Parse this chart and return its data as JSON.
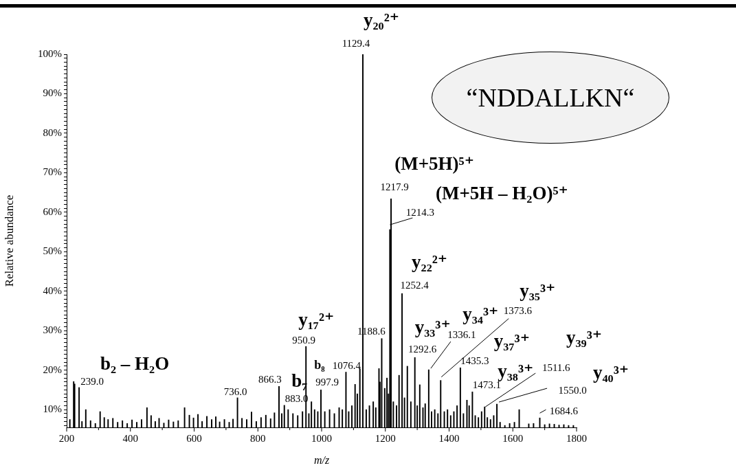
{
  "chart_data": {
    "type": "bar",
    "xlabel": "m/z",
    "ylabel": "Relative abundance",
    "xlim": [
      200,
      1800
    ],
    "xticks": [
      200,
      {
        "value": 300,
        "label": null
      },
      400,
      {
        "value": 500,
        "label": null
      },
      600,
      {
        "value": 700,
        "label": null
      },
      800,
      {
        "value": 900,
        "label": null
      },
      1000,
      {
        "value": 1100,
        "label": null
      },
      1200,
      {
        "value": 1300,
        "label": null
      },
      1400,
      {
        "value": 1500,
        "label": null
      },
      1600,
      {
        "value": 1700,
        "label": null
      },
      1800
    ],
    "ylim": [
      5.5,
      100
    ],
    "yticks": [
      {
        "value": 10,
        "label": "10%"
      },
      {
        "value": 20,
        "label": "20%"
      },
      {
        "value": 30,
        "label": "30%"
      },
      {
        "value": 40,
        "label": "40%"
      },
      {
        "value": 50,
        "label": "50%"
      },
      {
        "value": 60,
        "label": "60%"
      },
      {
        "value": 70,
        "label": "70%"
      },
      {
        "value": 80,
        "label": "80%"
      },
      {
        "value": 90,
        "label": "90%"
      },
      {
        "value": 100,
        "label": "100%"
      },
      {
        "value": 6,
        "label": null
      },
      {
        "value": 7,
        "label": null
      },
      {
        "value": 8,
        "label": null
      },
      {
        "value": 9,
        "label": null
      },
      {
        "value": 11,
        "label": null
      },
      {
        "value": 12,
        "label": null
      },
      {
        "value": 13,
        "label": null
      },
      {
        "value": 14,
        "label": null
      },
      {
        "value": 15,
        "label": null
      },
      {
        "value": 16,
        "label": null
      },
      {
        "value": 17,
        "label": null
      },
      {
        "value": 18,
        "label": null
      },
      {
        "value": 19,
        "label": null
      },
      {
        "value": 21,
        "label": null
      },
      {
        "value": 22,
        "label": null
      },
      {
        "value": 23,
        "label": null
      },
      {
        "value": 24,
        "label": null
      },
      {
        "value": 25,
        "label": null
      },
      {
        "value": 26,
        "label": null
      },
      {
        "value": 27,
        "label": null
      },
      {
        "value": 28,
        "label": null
      },
      {
        "value": 29,
        "label": null
      },
      {
        "value": 31,
        "label": null
      },
      {
        "value": 32,
        "label": null
      },
      {
        "value": 33,
        "label": null
      },
      {
        "value": 34,
        "label": null
      },
      {
        "value": 35,
        "label": null
      },
      {
        "value": 36,
        "label": null
      },
      {
        "value": 37,
        "label": null
      },
      {
        "value": 38,
        "label": null
      },
      {
        "value": 39,
        "label": null
      },
      {
        "value": 41,
        "label": null
      },
      {
        "value": 42,
        "label": null
      },
      {
        "value": 43,
        "label": null
      },
      {
        "value": 44,
        "label": null
      },
      {
        "value": 45,
        "label": null
      },
      {
        "value": 46,
        "label": null
      },
      {
        "value": 47,
        "label": null
      },
      {
        "value": 48,
        "label": null
      },
      {
        "value": 49,
        "label": null
      },
      {
        "value": 51,
        "label": null
      },
      {
        "value": 52,
        "label": null
      },
      {
        "value": 53,
        "label": null
      },
      {
        "value": 54,
        "label": null
      },
      {
        "value": 55,
        "label": null
      },
      {
        "value": 56,
        "label": null
      },
      {
        "value": 57,
        "label": null
      },
      {
        "value": 58,
        "label": null
      },
      {
        "value": 59,
        "label": null
      },
      {
        "value": 61,
        "label": null
      },
      {
        "value": 62,
        "label": null
      },
      {
        "value": 63,
        "label": null
      },
      {
        "value": 64,
        "label": null
      },
      {
        "value": 65,
        "label": null
      },
      {
        "value": 66,
        "label": null
      },
      {
        "value": 67,
        "label": null
      },
      {
        "value": 68,
        "label": null
      },
      {
        "value": 69,
        "label": null
      },
      {
        "value": 71,
        "label": null
      },
      {
        "value": 72,
        "label": null
      },
      {
        "value": 73,
        "label": null
      },
      {
        "value": 74,
        "label": null
      },
      {
        "value": 75,
        "label": null
      },
      {
        "value": 76,
        "label": null
      },
      {
        "value": 77,
        "label": null
      },
      {
        "value": 78,
        "label": null
      },
      {
        "value": 79,
        "label": null
      },
      {
        "value": 81,
        "label": null
      },
      {
        "value": 82,
        "label": null
      },
      {
        "value": 83,
        "label": null
      },
      {
        "value": 84,
        "label": null
      },
      {
        "value": 85,
        "label": null
      },
      {
        "value": 86,
        "label": null
      },
      {
        "value": 87,
        "label": null
      },
      {
        "value": 88,
        "label": null
      },
      {
        "value": 89,
        "label": null
      },
      {
        "value": 91,
        "label": null
      },
      {
        "value": 92,
        "label": null
      },
      {
        "value": 93,
        "label": null
      },
      {
        "value": 94,
        "label": null
      },
      {
        "value": 95,
        "label": null
      },
      {
        "value": 96,
        "label": null
      },
      {
        "value": 97,
        "label": null
      },
      {
        "value": 98,
        "label": null
      },
      {
        "value": 99,
        "label": null
      }
    ],
    "grid": false,
    "series": [
      {
        "color": "#000000",
        "x": [
          210,
          222,
          225,
          239,
          248,
          260,
          275,
          290,
          305,
          318,
          330,
          345,
          360,
          375,
          390,
          405,
          420,
          435,
          452,
          465,
          478,
          490,
          505,
          520,
          535,
          550,
          570,
          585,
          598,
          612,
          625,
          640,
          655,
          668,
          680,
          695,
          710,
          722,
          736,
          750,
          765,
          780,
          795,
          810,
          825,
          840,
          852,
          866.3,
          875,
          883,
          895,
          910,
          925,
          940,
          950.9,
          960,
          968,
          978,
          988,
          997.9,
          1010,
          1025,
          1040,
          1055,
          1065,
          1076.4,
          1085,
          1095,
          1105,
          1112,
          1120,
          1129.4,
          1140,
          1150,
          1162,
          1170,
          1180,
          1183,
          1188.6,
          1198,
          1205,
          1210,
          1214.3,
          1217.9,
          1225,
          1235,
          1243,
          1252.4,
          1260,
          1269,
          1280,
          1292.6,
          1300,
          1308,
          1318,
          1325,
          1336.1,
          1345,
          1355,
          1365,
          1373.6,
          1385,
          1395,
          1405,
          1415,
          1425,
          1435.3,
          1445,
          1456,
          1463,
          1473.1,
          1482,
          1492,
          1502,
          1511.6,
          1520,
          1530,
          1540,
          1550,
          1560,
          1575,
          1590,
          1605,
          1620,
          1650,
          1665,
          1684.6,
          1700,
          1715,
          1730,
          1745,
          1760,
          1775,
          1790
        ],
        "values": [
          7.5,
          17.1,
          16.5,
          15.6,
          7,
          10,
          7.2,
          6.5,
          9.5,
          8,
          7.5,
          7.8,
          6.8,
          7.2,
          6.5,
          7.4,
          6.8,
          7.5,
          10.5,
          8.5,
          7,
          7.8,
          6.6,
          7.4,
          6.9,
          7.2,
          10.5,
          8.6,
          7.9,
          8.8,
          7,
          8.3,
          7.5,
          8.2,
          6.9,
          7.5,
          6.8,
          7.6,
          13,
          7.8,
          7.5,
          9.4,
          7,
          8,
          8.6,
          7.7,
          9.2,
          15.9,
          9,
          11.1,
          10,
          9,
          8.5,
          9.5,
          26,
          9,
          12,
          10,
          9.5,
          15,
          9.5,
          10,
          9,
          10.5,
          10,
          19.5,
          9.5,
          11,
          16.4,
          14,
          20.4,
          100,
          10,
          11,
          12,
          10.5,
          20.4,
          17,
          28,
          15.4,
          18,
          14,
          55.6,
          63.4,
          12,
          11,
          18.7,
          39.4,
          13,
          21,
          12,
          23.2,
          11,
          16.3,
          10.5,
          11.5,
          20.1,
          9.5,
          10,
          9,
          17.4,
          9.5,
          10,
          8.5,
          9.5,
          11,
          20.6,
          9,
          12.4,
          11,
          14.5,
          8.5,
          8,
          9.5,
          10.7,
          8,
          7.5,
          8.5,
          11.4,
          6.8,
          6,
          6.5,
          6.8,
          10,
          6.4,
          6.5,
          7.9,
          6.2,
          6.4,
          6.3,
          6.1,
          6.2,
          6,
          6
        ]
      }
    ],
    "annotations": [
      {
        "text": "1129.4",
        "x": 1129.4,
        "y": 100
      },
      {
        "text": "y₂₀²⁺",
        "x": 1129.4,
        "y": 100
      },
      {
        "text": "1217.9",
        "x": 1217.9,
        "y": 63.4
      },
      {
        "text": "(M+5H)⁵⁺",
        "x": 1217.9,
        "y": 63.4
      },
      {
        "text": "1214.3",
        "x": 1214.3,
        "y": 55.6
      },
      {
        "text": "(M+5H – H₂O)⁵⁺",
        "x": 1214.3,
        "y": 55.6
      },
      {
        "text": "1252.4",
        "x": 1252.4,
        "y": 39.4
      },
      {
        "text": "y₂₂²⁺",
        "x": 1252.4,
        "y": 39.4
      },
      {
        "text": "1188.6",
        "x": 1188.6,
        "y": 28
      },
      {
        "text": "1292.6",
        "x": 1292.6,
        "y": 23.2
      },
      {
        "text": "y₃₃³⁺",
        "x": 1292.6,
        "y": 23.2
      },
      {
        "text": "1336.1",
        "x": 1336.1,
        "y": 20.1
      },
      {
        "text": "y₃₄³⁺",
        "x": 1373.6,
        "y": 17.4
      },
      {
        "text": "1373.6",
        "x": 1373.6,
        "y": 17.4
      },
      {
        "text": "y₃₅³⁺",
        "x": 1373.6,
        "y": 17.4
      },
      {
        "text": "1435.3",
        "x": 1435.3,
        "y": 20.6
      },
      {
        "text": "y₃₇³⁺",
        "x": 1435.3,
        "y": 20.6
      },
      {
        "text": "1473.1",
        "x": 1473.1,
        "y": 14.5
      },
      {
        "text": "y₃₈³⁺",
        "x": 1511.6,
        "y": 10.7
      },
      {
        "text": "1511.6",
        "x": 1511.6,
        "y": 10.7
      },
      "y₃₉³⁺",
      {
        "text": "1550.0",
        "x": 1550,
        "y": 11.4
      },
      "y₄₀³⁺",
      {
        "text": "1684.6",
        "x": 1684.6,
        "y": 7.9
      },
      {
        "text": "950.9",
        "x": 950.9,
        "y": 26
      },
      {
        "text": "y₁₇²⁺",
        "x": 950.9,
        "y": 26
      },
      {
        "text": "997.9",
        "x": 997.9,
        "y": 15
      },
      {
        "text": "b₈",
        "x": 997.9,
        "y": 15
      },
      {
        "text": "1076.4",
        "x": 1076.4,
        "y": 19.5
      },
      {
        "text": "866.3",
        "x": 866.3,
        "y": 15.9
      },
      {
        "text": "883.0",
        "x": 883,
        "y": 11.1
      },
      {
        "text": "b₇",
        "x": 883,
        "y": 11.1
      },
      {
        "text": "736.0",
        "x": 736,
        "y": 13
      },
      {
        "text": "239.0",
        "x": 239,
        "y": 15.6
      },
      {
        "text": "b₂ – H₂O",
        "x": 239,
        "y": 15.6
      },
      "“NDDALLKN“"
    ]
  }
}
